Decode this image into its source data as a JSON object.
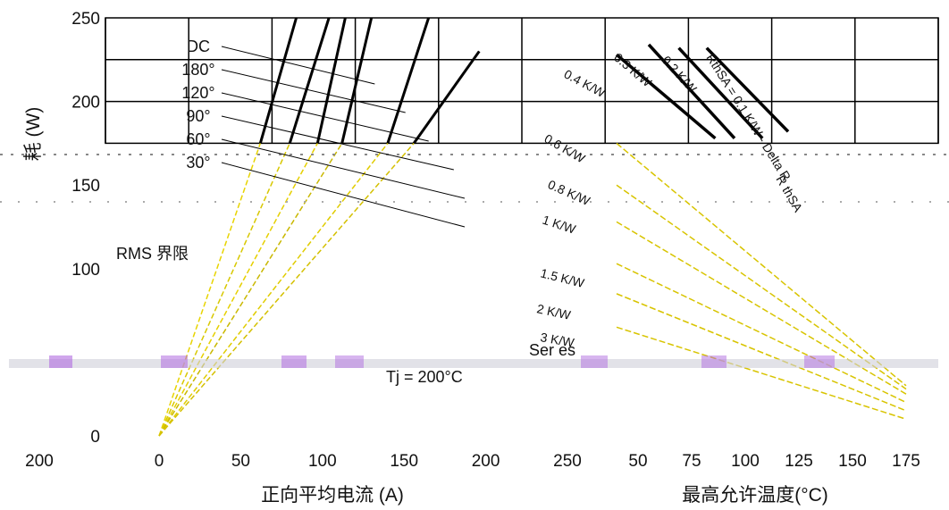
{
  "chart_data": [
    {
      "type": "line",
      "panel": "left",
      "ylabel": "耗 (W)",
      "yticks": [
        "0",
        "100",
        "150",
        "200",
        "250"
      ],
      "xtick_under_y": "200",
      "ylim": [
        0,
        250
      ],
      "xlabel": "正向平均电流 (A)",
      "xticks": [
        "0",
        "50",
        "100",
        "150",
        "200",
        "250"
      ],
      "xlim": [
        0,
        250
      ],
      "grid": true,
      "series": [
        {
          "name": "DC",
          "x": [
            0,
            62,
            84
          ],
          "y": [
            0,
            175,
            250
          ]
        },
        {
          "name": "180°",
          "x": [
            0,
            80,
            104
          ],
          "y": [
            0,
            175,
            250
          ]
        },
        {
          "name": "120°",
          "x": [
            0,
            97,
            114
          ],
          "y": [
            0,
            175,
            250
          ]
        },
        {
          "name": "90°",
          "x": [
            0,
            112,
            130
          ],
          "y": [
            0,
            175,
            250
          ]
        },
        {
          "name": "60°",
          "x": [
            0,
            140,
            165
          ],
          "y": [
            0,
            175,
            250
          ]
        },
        {
          "name": "30°",
          "x": [
            0,
            156,
            196
          ],
          "y": [
            0,
            175,
            230
          ]
        }
      ],
      "annotations": [
        "RMS 界限",
        "Tj = 200°C"
      ]
    },
    {
      "type": "line",
      "panel": "right",
      "xlabel": "最高允许温度(°C)",
      "xticks": [
        "50",
        "75",
        "100",
        "125",
        "150",
        "175"
      ],
      "xlim": [
        40,
        190
      ],
      "grid": true,
      "series": [
        {
          "name": "RthSA = 0.1 K/W - Delta R",
          "x": [
            82,
            120
          ],
          "y": [
            232,
            182
          ]
        },
        {
          "name": "0.2 K/W",
          "x": [
            69,
            108
          ],
          "y": [
            232,
            178
          ]
        },
        {
          "name": "0.3 K/W",
          "x": [
            55,
            95
          ],
          "y": [
            234,
            178
          ]
        },
        {
          "name": "0.4 K/W",
          "x": [
            40,
            86
          ],
          "y": [
            228,
            178
          ]
        },
        {
          "name": "0.6 K/W",
          "x": [
            40,
            175
          ],
          "y": [
            175,
            30
          ]
        },
        {
          "name": "0.8 K/W",
          "x": [
            40,
            175
          ],
          "y": [
            150,
            28
          ]
        },
        {
          "name": "1 K/W",
          "x": [
            40,
            175
          ],
          "y": [
            128,
            25
          ]
        },
        {
          "name": "1.5 K/W",
          "x": [
            40,
            175
          ],
          "y": [
            103,
            20
          ]
        },
        {
          "name": "2 K/W",
          "x": [
            40,
            175
          ],
          "y": [
            85,
            15
          ]
        },
        {
          "name": "3 K/W",
          "x": [
            40,
            175
          ],
          "y": [
            65,
            10
          ]
        }
      ],
      "annotations": [
        "Ser es",
        "R thSA"
      ]
    }
  ]
}
